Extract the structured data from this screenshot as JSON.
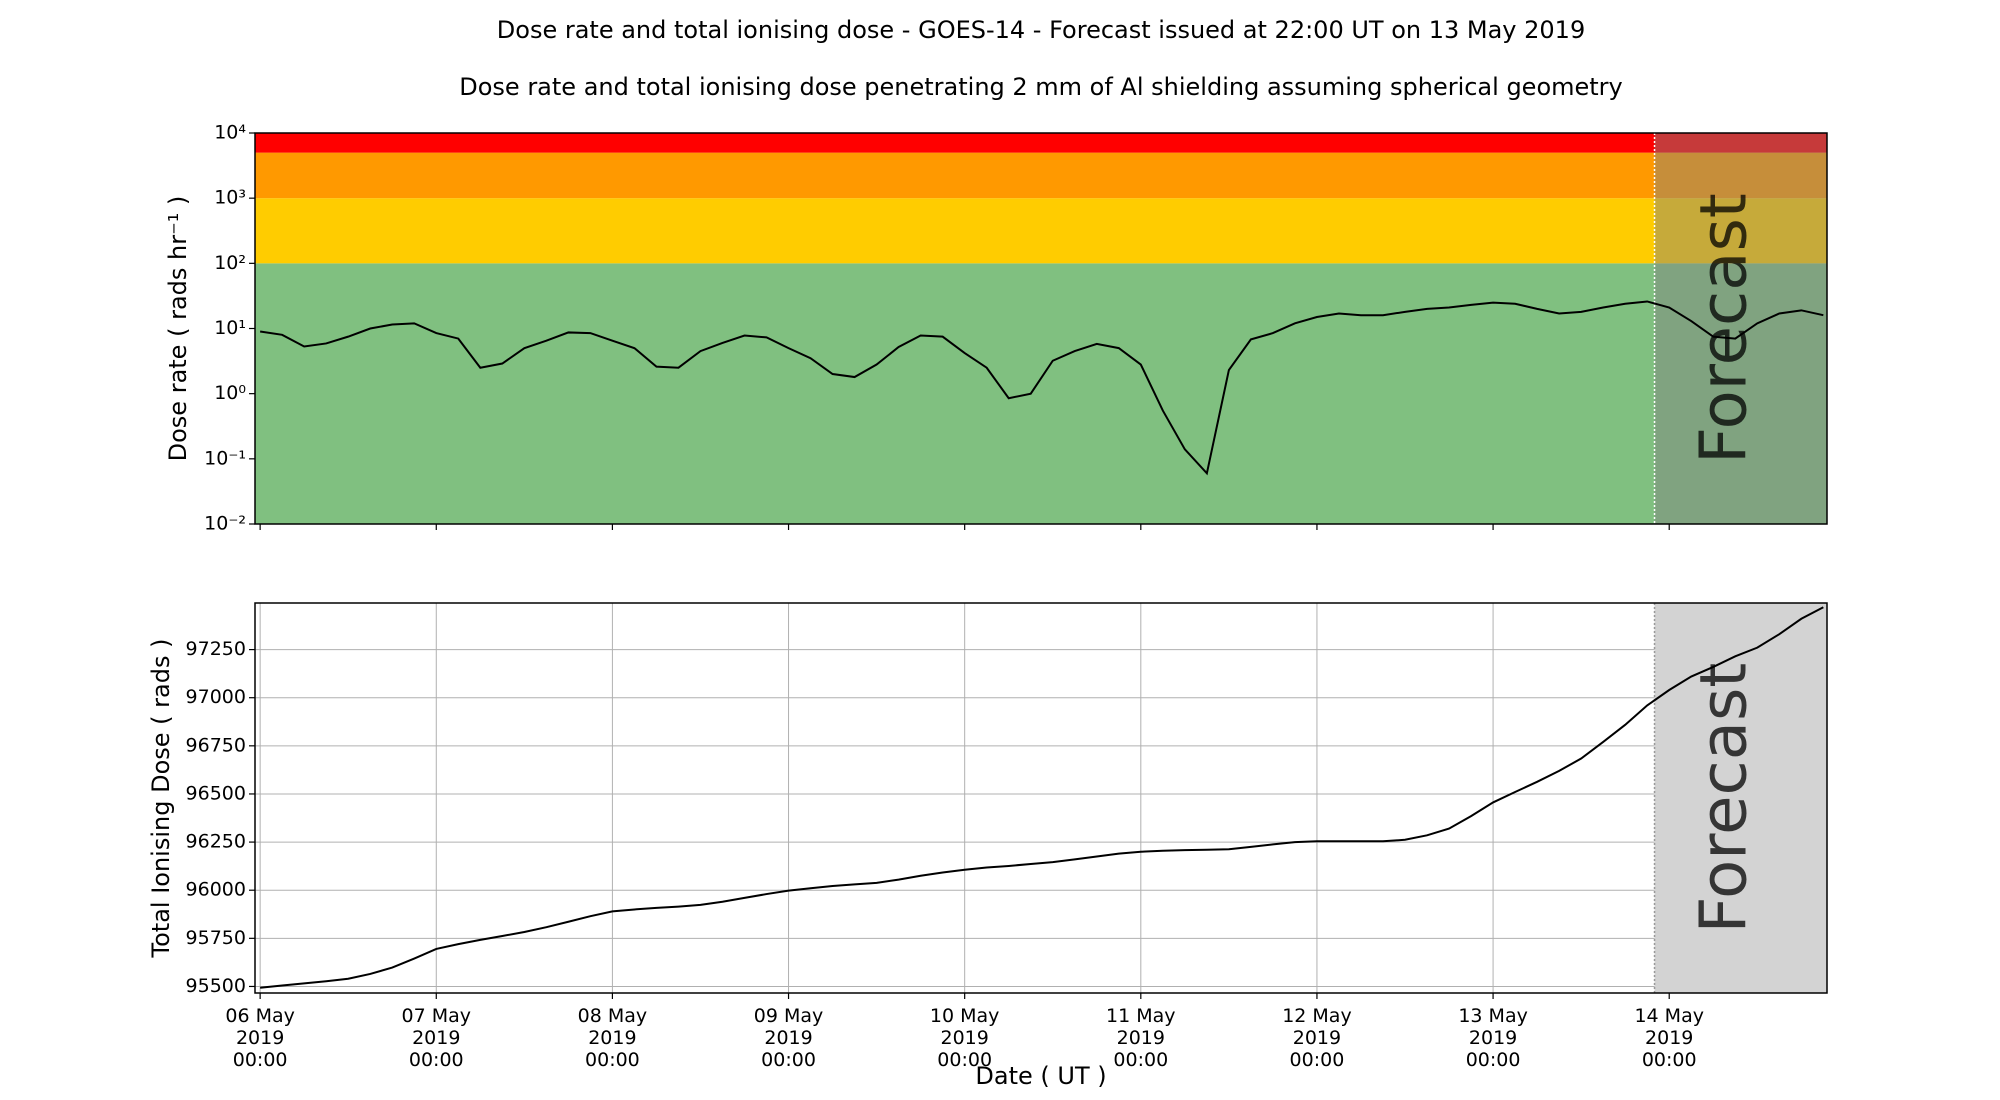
{
  "title": "Dose rate and total ionising dose - GOES-14 - Forecast issued at 22:00 UT on 13 May 2019",
  "subtitle": "Dose rate and total ionising dose penetrating 2 mm of Al shielding assuming spherical geometry",
  "chart_data": [
    {
      "type": "line",
      "ylabel": "Dose rate ( rads hr⁻¹ )",
      "log_scale": true,
      "grid": false,
      "color": "#000000",
      "ylim": [
        0.01,
        10000
      ],
      "yticks": [
        {
          "value": 0.01,
          "label": "10⁻²"
        },
        {
          "value": 0.1,
          "label": "10⁻¹"
        },
        {
          "value": 1,
          "label": "10⁰"
        },
        {
          "value": 10,
          "label": "10¹"
        },
        {
          "value": 100,
          "label": "10²"
        },
        {
          "value": 1000,
          "label": "10³"
        },
        {
          "value": 10000,
          "label": "10⁴"
        }
      ],
      "bands": [
        {
          "from": 0.01,
          "to": 100,
          "color": "#80c080"
        },
        {
          "from": 100,
          "to": 1000,
          "color": "#ffcc00"
        },
        {
          "from": 1000,
          "to": 5000,
          "color": "#ff9900"
        },
        {
          "from": 5000,
          "to": 10000,
          "color": "#ff0000"
        }
      ],
      "forecast_start": "2019-05-13 22:00",
      "forecast_label": "Forecast",
      "forecast_color": "#808080",
      "xlim": [
        "2019-05-05 23:18",
        "2019-05-14 21:30"
      ],
      "xticks": [
        "2019-05-06 00:00",
        "2019-05-07 00:00",
        "2019-05-08 00:00",
        "2019-05-09 00:00",
        "2019-05-10 00:00",
        "2019-05-11 00:00",
        "2019-05-12 00:00",
        "2019-05-13 00:00",
        "2019-05-14 00:00"
      ],
      "x": [
        "2019-05-06 00:00",
        "2019-05-06 03:00",
        "2019-05-06 06:00",
        "2019-05-06 09:00",
        "2019-05-06 12:00",
        "2019-05-06 15:00",
        "2019-05-06 18:00",
        "2019-05-06 21:00",
        "2019-05-07 00:00",
        "2019-05-07 03:00",
        "2019-05-07 06:00",
        "2019-05-07 09:00",
        "2019-05-07 12:00",
        "2019-05-07 15:00",
        "2019-05-07 18:00",
        "2019-05-07 21:00",
        "2019-05-08 00:00",
        "2019-05-08 03:00",
        "2019-05-08 06:00",
        "2019-05-08 09:00",
        "2019-05-08 12:00",
        "2019-05-08 15:00",
        "2019-05-08 18:00",
        "2019-05-08 21:00",
        "2019-05-09 00:00",
        "2019-05-09 03:00",
        "2019-05-09 06:00",
        "2019-05-09 09:00",
        "2019-05-09 12:00",
        "2019-05-09 15:00",
        "2019-05-09 18:00",
        "2019-05-09 21:00",
        "2019-05-10 00:00",
        "2019-05-10 03:00",
        "2019-05-10 06:00",
        "2019-05-10 09:00",
        "2019-05-10 12:00",
        "2019-05-10 15:00",
        "2019-05-10 18:00",
        "2019-05-10 21:00",
        "2019-05-11 00:00",
        "2019-05-11 03:00",
        "2019-05-11 06:00",
        "2019-05-11 09:00",
        "2019-05-11 12:00",
        "2019-05-11 15:00",
        "2019-05-11 18:00",
        "2019-05-11 21:00",
        "2019-05-12 00:00",
        "2019-05-12 03:00",
        "2019-05-12 06:00",
        "2019-05-12 09:00",
        "2019-05-12 12:00",
        "2019-05-12 15:00",
        "2019-05-12 18:00",
        "2019-05-12 21:00",
        "2019-05-13 00:00",
        "2019-05-13 03:00",
        "2019-05-13 06:00",
        "2019-05-13 09:00",
        "2019-05-13 12:00",
        "2019-05-13 15:00",
        "2019-05-13 18:00",
        "2019-05-13 21:00",
        "2019-05-14 00:00",
        "2019-05-14 03:00",
        "2019-05-14 06:00",
        "2019-05-14 09:00",
        "2019-05-14 12:00",
        "2019-05-14 15:00",
        "2019-05-14 18:00",
        "2019-05-14 21:00"
      ],
      "values": [
        9,
        8,
        5.3,
        5.9,
        7.5,
        10,
        11.5,
        12,
        8.5,
        7,
        2.5,
        2.9,
        5,
        6.5,
        8.7,
        8.5,
        6.5,
        5,
        2.6,
        2.5,
        4.5,
        6,
        7.8,
        7.3,
        5,
        3.5,
        2,
        1.8,
        2.8,
        5.2,
        7.8,
        7.5,
        4.2,
        2.5,
        0.85,
        1.0,
        3.2,
        4.5,
        5.8,
        5,
        2.8,
        0.55,
        0.14,
        0.06,
        2.3,
        6.8,
        8.5,
        12,
        15,
        17,
        16,
        16,
        18,
        20,
        21,
        23,
        25,
        24,
        20,
        17,
        18,
        21,
        24,
        26,
        21,
        13,
        7.5,
        7,
        12,
        17,
        19,
        16
      ]
    },
    {
      "type": "line",
      "ylabel": "Total Ionising Dose ( rads )",
      "xlabel": "Date ( UT )",
      "log_scale": false,
      "grid": true,
      "color": "#000000",
      "ylim": [
        95466,
        97492
      ],
      "yticks": [
        95500,
        95750,
        96000,
        96250,
        96500,
        96750,
        97000,
        97250
      ],
      "forecast_start": "2019-05-13 22:00",
      "forecast_label": "Forecast",
      "forecast_color": "#d3d3d3",
      "xlim": [
        "2019-05-05 23:18",
        "2019-05-14 21:30"
      ],
      "xticks": [
        {
          "value": "2019-05-06 00:00",
          "label": "06 May\n2019\n00:00"
        },
        {
          "value": "2019-05-07 00:00",
          "label": "07 May\n2019\n00:00"
        },
        {
          "value": "2019-05-08 00:00",
          "label": "08 May\n2019\n00:00"
        },
        {
          "value": "2019-05-09 00:00",
          "label": "09 May\n2019\n00:00"
        },
        {
          "value": "2019-05-10 00:00",
          "label": "10 May\n2019\n00:00"
        },
        {
          "value": "2019-05-11 00:00",
          "label": "11 May\n2019\n00:00"
        },
        {
          "value": "2019-05-12 00:00",
          "label": "12 May\n2019\n00:00"
        },
        {
          "value": "2019-05-13 00:00",
          "label": "13 May\n2019\n00:00"
        },
        {
          "value": "2019-05-14 00:00",
          "label": "14 May\n2019\n00:00"
        }
      ],
      "x": [
        "2019-05-06 00:00",
        "2019-05-06 03:00",
        "2019-05-06 06:00",
        "2019-05-06 09:00",
        "2019-05-06 12:00",
        "2019-05-06 15:00",
        "2019-05-06 18:00",
        "2019-05-06 21:00",
        "2019-05-07 00:00",
        "2019-05-07 03:00",
        "2019-05-07 06:00",
        "2019-05-07 09:00",
        "2019-05-07 12:00",
        "2019-05-07 15:00",
        "2019-05-07 18:00",
        "2019-05-07 21:00",
        "2019-05-08 00:00",
        "2019-05-08 03:00",
        "2019-05-08 06:00",
        "2019-05-08 09:00",
        "2019-05-08 12:00",
        "2019-05-08 15:00",
        "2019-05-08 18:00",
        "2019-05-08 21:00",
        "2019-05-09 00:00",
        "2019-05-09 03:00",
        "2019-05-09 06:00",
        "2019-05-09 09:00",
        "2019-05-09 12:00",
        "2019-05-09 15:00",
        "2019-05-09 18:00",
        "2019-05-09 21:00",
        "2019-05-10 00:00",
        "2019-05-10 03:00",
        "2019-05-10 06:00",
        "2019-05-10 09:00",
        "2019-05-10 12:00",
        "2019-05-10 15:00",
        "2019-05-10 18:00",
        "2019-05-10 21:00",
        "2019-05-11 00:00",
        "2019-05-11 03:00",
        "2019-05-11 06:00",
        "2019-05-11 09:00",
        "2019-05-11 12:00",
        "2019-05-11 15:00",
        "2019-05-11 18:00",
        "2019-05-11 21:00",
        "2019-05-12 00:00",
        "2019-05-12 03:00",
        "2019-05-12 06:00",
        "2019-05-12 09:00",
        "2019-05-12 12:00",
        "2019-05-12 15:00",
        "2019-05-12 18:00",
        "2019-05-12 21:00",
        "2019-05-13 00:00",
        "2019-05-13 03:00",
        "2019-05-13 06:00",
        "2019-05-13 09:00",
        "2019-05-13 12:00",
        "2019-05-13 15:00",
        "2019-05-13 18:00",
        "2019-05-13 21:00",
        "2019-05-14 00:00",
        "2019-05-14 03:00",
        "2019-05-14 06:00",
        "2019-05-14 09:00",
        "2019-05-14 12:00",
        "2019-05-14 15:00",
        "2019-05-14 18:00",
        "2019-05-14 21:00"
      ],
      "values": [
        95493,
        95505,
        95516,
        95527,
        95540,
        95565,
        95598,
        95645,
        95695,
        95720,
        95742,
        95762,
        95783,
        95808,
        95836,
        95865,
        95890,
        95900,
        95908,
        95915,
        95924,
        95940,
        95960,
        95980,
        95998,
        96010,
        96022,
        96030,
        96038,
        96055,
        96075,
        96092,
        96106,
        96118,
        96126,
        96136,
        96146,
        96160,
        96175,
        96190,
        96200,
        96205,
        96208,
        96210,
        96213,
        96225,
        96238,
        96250,
        96254,
        96254,
        96254,
        96254,
        96262,
        96285,
        96320,
        96385,
        96456,
        96510,
        96563,
        96620,
        96684,
        96770,
        96859,
        96960,
        97040,
        97110,
        97160,
        97215,
        97260,
        97330,
        97410,
        97470
      ]
    }
  ]
}
